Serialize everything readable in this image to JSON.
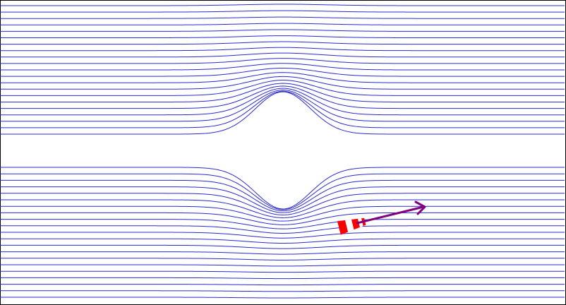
{
  "scene": {
    "streamline_color": "#2a2ad0",
    "border_color": "#000000",
    "background_color": "#ffffff",
    "windsock_color": "#ff0000",
    "windsock_stripe_color": "#ffffff",
    "velocity_arrow_color": "#800080",
    "streamline_count_top": 21,
    "streamline_count_bottom": 21
  }
}
